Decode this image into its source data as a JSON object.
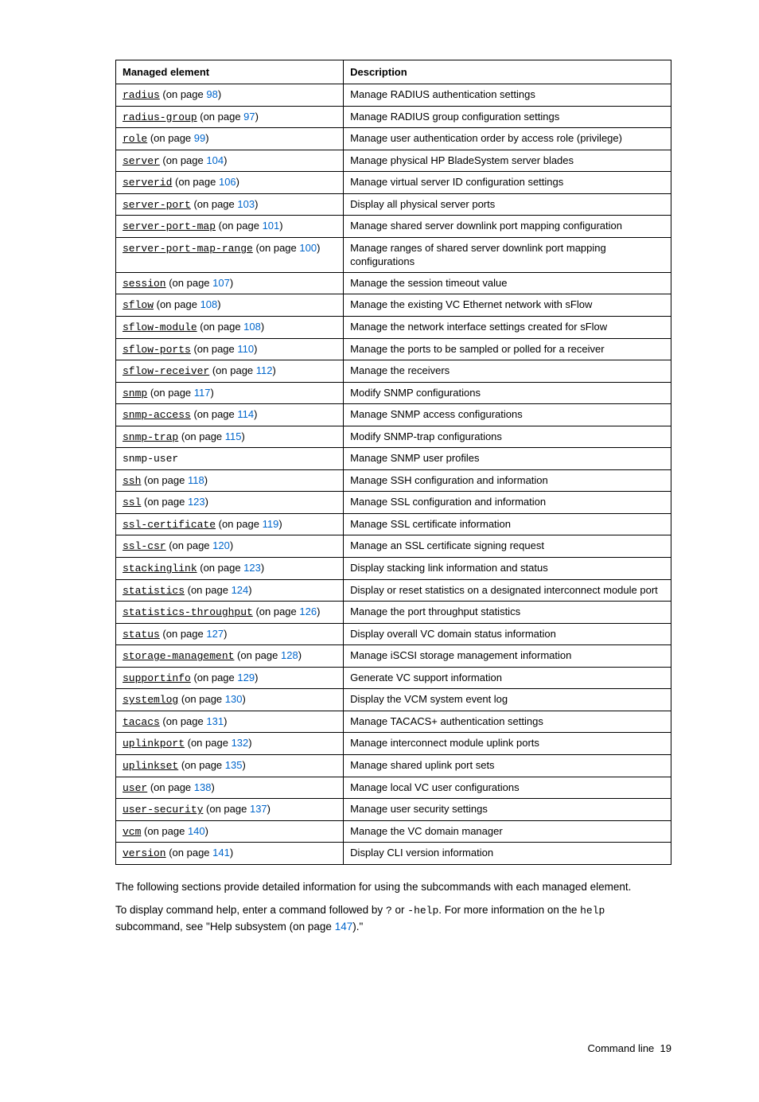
{
  "table": {
    "headers": [
      "Managed element",
      "Description"
    ],
    "rows": [
      {
        "cmd": "radius",
        "page": "98",
        "desc": "Manage RADIUS authentication settings"
      },
      {
        "cmd": "radius-group",
        "page": "97",
        "desc": "Manage RADIUS group configuration settings"
      },
      {
        "cmd": "role",
        "page": "99",
        "desc": "Manage user authentication order by access role (privilege)"
      },
      {
        "cmd": "server",
        "page": "104",
        "desc": "Manage physical HP BladeSystem server blades"
      },
      {
        "cmd": "serverid",
        "page": "106",
        "desc": "Manage virtual server ID configuration settings"
      },
      {
        "cmd": "server-port",
        "page": "103",
        "desc": "Display all physical server ports"
      },
      {
        "cmd": "server-port-map",
        "page": "101",
        "desc": "Manage shared server downlink port mapping configuration"
      },
      {
        "cmd": "server-port-map-range",
        "page": "100",
        "desc": "Manage ranges of shared server downlink port mapping configurations"
      },
      {
        "cmd": "session",
        "page": "107",
        "desc": "Manage the session timeout value"
      },
      {
        "cmd": "sflow",
        "page": "108",
        "desc": "Manage the existing VC Ethernet network with sFlow"
      },
      {
        "cmd": "sflow-module",
        "page": "108",
        "desc": "Manage the network interface settings created for sFlow"
      },
      {
        "cmd": "sflow-ports",
        "page": "110",
        "desc": "Manage the ports to be sampled or polled for a receiver"
      },
      {
        "cmd": "sflow-receiver",
        "page": "112",
        "desc": "Manage the receivers"
      },
      {
        "cmd": "snmp",
        "page": "117",
        "desc": "Modify SNMP configurations"
      },
      {
        "cmd": "snmp-access",
        "page": "114",
        "desc": "Manage SNMP access configurations"
      },
      {
        "cmd": "snmp-trap",
        "page": "115",
        "desc": "Modify SNMP-trap configurations"
      },
      {
        "cmd": "snmp-user",
        "page": "",
        "desc": "Manage SNMP user profiles"
      },
      {
        "cmd": "ssh",
        "page": "118",
        "desc": "Manage SSH configuration and information"
      },
      {
        "cmd": "ssl",
        "page": "123",
        "desc": "Manage SSL configuration and information"
      },
      {
        "cmd": "ssl-certificate",
        "page": "119",
        "desc": "Manage SSL certificate information"
      },
      {
        "cmd": "ssl-csr",
        "page": "120",
        "desc": "Manage an SSL certificate signing request"
      },
      {
        "cmd": "stackinglink",
        "page": "123",
        "desc": "Display stacking link information and status"
      },
      {
        "cmd": "statistics",
        "page": "124",
        "desc": "Display or reset statistics on a designated interconnect module port"
      },
      {
        "cmd": "statistics-throughput",
        "page": "126",
        "desc": "Manage the port throughput statistics"
      },
      {
        "cmd": "status",
        "page": "127",
        "desc": "Display overall VC domain status information"
      },
      {
        "cmd": "storage-management",
        "page": "128",
        "desc": "Manage iSCSI storage management information"
      },
      {
        "cmd": "supportinfo",
        "page": "129",
        "desc": "Generate VC support information"
      },
      {
        "cmd": "systemlog",
        "page": "130",
        "desc": "Display the VCM system event log"
      },
      {
        "cmd": "tacacs",
        "page": "131",
        "desc": "Manage TACACS+ authentication settings"
      },
      {
        "cmd": "uplinkport",
        "page": "132",
        "desc": "Manage interconnect module uplink ports"
      },
      {
        "cmd": "uplinkset",
        "page": "135",
        "desc": "Manage shared uplink port sets"
      },
      {
        "cmd": "user",
        "page": "138",
        "desc": "Manage local VC user configurations"
      },
      {
        "cmd": "user-security",
        "page": "137",
        "desc": "Manage user security settings"
      },
      {
        "cmd": "vcm",
        "page": "140",
        "desc": "Manage the VC domain manager"
      },
      {
        "cmd": "version",
        "page": "141",
        "desc": "Display CLI version information"
      }
    ],
    "on_page_text": " (on page "
  },
  "para1": "The following sections provide detailed information for using the subcommands with each managed element.",
  "para2": {
    "t1": "To display command help, enter a command followed by ",
    "q": "?",
    "t2": " or ",
    "help1": "-help",
    "t3": ". For more information on the ",
    "help2": "help",
    "t4": " subcommand, see \"Help subsystem (on page ",
    "page": "147",
    "t5": ").\""
  },
  "footer": {
    "label": "Command line",
    "page": "19"
  }
}
